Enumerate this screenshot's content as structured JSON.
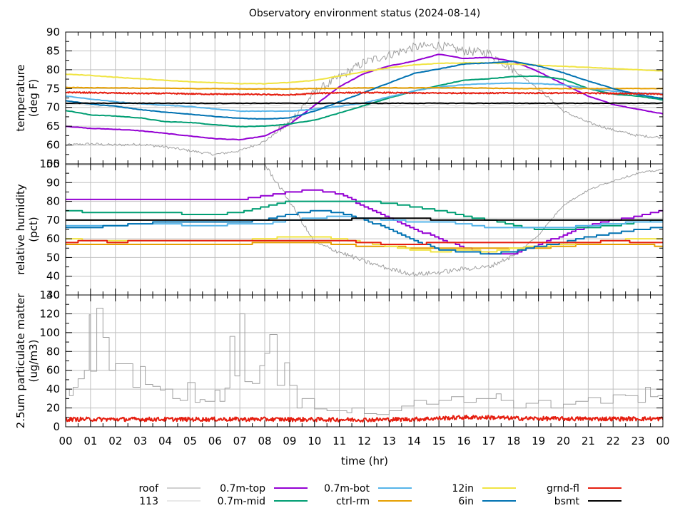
{
  "chart_data": {
    "type": "line",
    "title": "Observatory environment status (2024-08-14)",
    "xlabel": "time (hr)",
    "x_range_hours": [
      0,
      24
    ],
    "x_tick_labels": [
      "00",
      "01",
      "02",
      "03",
      "04",
      "05",
      "06",
      "07",
      "08",
      "09",
      "10",
      "11",
      "12",
      "13",
      "14",
      "15",
      "16",
      "17",
      "18",
      "19",
      "20",
      "21",
      "22",
      "23",
      "00"
    ],
    "grid": true,
    "legend_placement": "bottom",
    "legend": [
      {
        "name": "roof",
        "color": "#a0a0a0"
      },
      {
        "name": "113",
        "color": "#d3d3d3"
      },
      {
        "name": "0.7m-top",
        "color": "#9400d3"
      },
      {
        "name": "0.7m-mid",
        "color": "#009e73"
      },
      {
        "name": "0.7m-bot",
        "color": "#56b4e9"
      },
      {
        "name": "ctrl-rm",
        "color": "#e69f00"
      },
      {
        "name": "12in",
        "color": "#f0e442"
      },
      {
        "name": "6in",
        "color": "#0072b2"
      },
      {
        "name": "grnd-fl",
        "color": "#e51e10"
      },
      {
        "name": "bsmt",
        "color": "#000000"
      }
    ],
    "panels": [
      {
        "id": "temperature",
        "ylabel": [
          "temperature",
          "(deg F)"
        ],
        "ylim": [
          55,
          90
        ],
        "y_ticks": [
          60,
          65,
          70,
          75,
          80,
          85,
          90
        ],
        "y_tick_labels": [
          "60",
          "65",
          "70",
          "75",
          "80",
          "85",
          "90"
        ],
        "x": [
          0,
          1,
          2,
          3,
          4,
          5,
          6,
          7,
          8,
          9,
          10,
          11,
          12,
          13,
          14,
          15,
          16,
          17,
          18,
          19,
          20,
          21,
          22,
          23,
          24
        ],
        "series": [
          {
            "name": "roof",
            "style": "noisy",
            "values": [
              60,
              60.3,
              60,
              60.2,
              59.5,
              58.5,
              57.5,
              58.5,
              61,
              66,
              74,
              78,
              82,
              84,
              86,
              86.5,
              85,
              84.5,
              80,
              75,
              69,
              66,
              64,
              62.5,
              62
            ]
          },
          {
            "name": "113",
            "style": "wave",
            "values": [
              71,
              70.6,
              70.6,
              70.8,
              70.8,
              70.8,
              70.9,
              70.9,
              70.9,
              70.9,
              70.8,
              70.8,
              70.8,
              70.8,
              70.8,
              70.8,
              70.8,
              70.8,
              70.8,
              70.8,
              70.8,
              70.8,
              70.8,
              70.8,
              70.8
            ]
          },
          {
            "name": "0.7m-top",
            "values": [
              65,
              64.4,
              64.2,
              63.8,
              63.1,
              62.4,
              61.7,
              61.4,
              62.4,
              65.5,
              70.5,
              75.5,
              79,
              81,
              82.3,
              84.1,
              83,
              83.3,
              82.2,
              79.5,
              76.2,
              73,
              70.8,
              69.5,
              68.3
            ]
          },
          {
            "name": "0.7m-mid",
            "values": [
              69.2,
              68,
              67.7,
              67.2,
              66.2,
              66,
              65.4,
              64.9,
              65,
              65.6,
              66.6,
              68.5,
              70.5,
              72.5,
              74.3,
              75.8,
              77.2,
              77.6,
              78.2,
              78.3,
              77.5,
              75,
              73.5,
              73,
              72
            ]
          },
          {
            "name": "0.7m-bot",
            "values": [
              73,
              72.2,
              71.5,
              71,
              70.6,
              70.2,
              69.6,
              69,
              69,
              69,
              69.5,
              70.3,
              71.2,
              72.8,
              74.4,
              75.4,
              76,
              76.3,
              76.5,
              76.3,
              76,
              75,
              74.3,
              73.8,
              73.6
            ]
          },
          {
            "name": "ctrl-rm",
            "values": [
              75.3,
              75.2,
              75.2,
              75.1,
              75.1,
              75,
              75,
              74.9,
              74.9,
              74.9,
              75,
              75.1,
              75.2,
              75.2,
              75.2,
              75.2,
              75.2,
              75.1,
              75,
              75,
              75,
              75,
              75,
              75,
              75
            ]
          },
          {
            "name": "12in",
            "values": [
              78.8,
              78.5,
              78,
              77.6,
              77.2,
              76.8,
              76.6,
              76.3,
              76.3,
              76.6,
              77.2,
              78.3,
              79.5,
              80.5,
              81.3,
              81.7,
              81.8,
              81.8,
              81.5,
              81.2,
              80.9,
              80.6,
              80.3,
              80,
              79.7
            ]
          },
          {
            "name": "6in",
            "values": [
              71.8,
              70.9,
              70.3,
              69.4,
              68.7,
              68.2,
              67.6,
              67.1,
              66.9,
              67.2,
              69,
              71.5,
              74,
              76.5,
              79,
              80.2,
              81.5,
              81.8,
              82.2,
              81,
              79.2,
              77,
              75,
              73.4,
              72.3
            ]
          },
          {
            "name": "grnd-fl",
            "style": "noisy-small",
            "values": [
              74,
              73.9,
              73.8,
              73.7,
              73.7,
              73.6,
              73.5,
              73.5,
              73.4,
              73.3,
              73.7,
              73.9,
              73.9,
              73.9,
              73.8,
              73.8,
              73.8,
              73.8,
              73.8,
              73.8,
              73.8,
              73.8,
              73.7,
              73.7,
              73.5
            ]
          },
          {
            "name": "bsmt",
            "values": [
              71.1,
              71.1,
              71.1,
              71.1,
              71.1,
              71.1,
              71.1,
              71.1,
              71.1,
              71.1,
              71.1,
              71.1,
              71.1,
              71.1,
              71.1,
              71.1,
              71.1,
              71.1,
              71.1,
              71.1,
              71.1,
              71.1,
              71.1,
              71.1,
              71.1
            ]
          }
        ]
      },
      {
        "id": "humidity",
        "ylabel": [
          "relative humidity",
          "(pct)"
        ],
        "ylim": [
          30,
          100
        ],
        "y_ticks": [
          40,
          50,
          60,
          70,
          80,
          90,
          100
        ],
        "y_tick_labels": [
          "40",
          "50",
          "60",
          "70",
          "80",
          "90",
          "100"
        ],
        "extra_overlap_label": "55",
        "x": [
          0,
          1,
          2,
          3,
          4,
          5,
          6,
          7,
          8,
          9,
          10,
          11,
          12,
          13,
          14,
          15,
          16,
          17,
          18,
          19,
          20,
          21,
          22,
          23,
          24
        ],
        "series": [
          {
            "name": "roof",
            "style": "noisy",
            "values": [
              99.5,
              99.5,
              99.5,
              99.5,
              99.5,
              99.5,
              99.5,
              99.5,
              99.5,
              80,
              58,
              53,
              48,
              44,
              41,
              42,
              44,
              45,
              51,
              62,
              78,
              86,
              91,
              95,
              97
            ]
          },
          {
            "name": "113",
            "style": "steps",
            "values": [
              70,
              70,
              70,
              70,
              70,
              70,
              70,
              70,
              70,
              70,
              70,
              70,
              70,
              70,
              70,
              71,
              71,
              71,
              71,
              71,
              71,
              71,
              71,
              71,
              71
            ]
          },
          {
            "name": "0.7m-top",
            "style": "steps",
            "values": [
              81,
              81,
              81,
              81,
              81,
              81,
              81,
              81,
              83,
              85,
              86,
              84,
              77,
              71,
              65,
              60,
              55,
              52,
              52,
              57,
              62,
              67,
              70,
              72,
              75
            ]
          },
          {
            "name": "0.7m-mid",
            "style": "steps",
            "values": [
              75,
              74,
              74,
              74,
              74,
              73,
              73,
              74,
              77,
              80,
              80,
              80,
              80,
              79,
              77,
              75,
              72,
              70,
              67,
              65,
              65,
              66,
              67,
              69,
              70
            ]
          },
          {
            "name": "0.7m-bot",
            "style": "steps",
            "values": [
              67,
              67,
              67,
              68,
              68,
              67,
              67,
              68,
              68,
              70,
              71,
              72,
              71,
              70,
              69,
              69,
              68,
              66,
              66,
              66,
              66,
              67,
              68,
              69,
              69
            ]
          },
          {
            "name": "ctrl-rm",
            "style": "steps",
            "values": [
              57,
              57,
              57,
              57,
              57,
              57,
              57,
              57,
              58,
              58,
              58,
              57,
              56,
              56,
              55,
              55,
              55,
              55,
              55,
              55,
              56,
              57,
              57,
              57,
              56
            ]
          },
          {
            "name": "12in",
            "style": "steps",
            "values": [
              60,
              59,
              59,
              59,
              59,
              59,
              59,
              59,
              60,
              61,
              61,
              60,
              58,
              56,
              54,
              53,
              54,
              53,
              55,
              56,
              57,
              58,
              59,
              60,
              60
            ]
          },
          {
            "name": "6in",
            "style": "steps",
            "values": [
              66,
              66,
              67,
              68,
              69,
              69,
              69,
              69,
              70,
              73,
              75,
              74,
              70,
              65,
              59,
              54,
              53,
              52,
              53,
              56,
              58,
              61,
              63,
              65,
              66
            ]
          },
          {
            "name": "grnd-fl",
            "style": "steps",
            "values": [
              58,
              59,
              58,
              59,
              59,
              59,
              59,
              59,
              59,
              59,
              59,
              59,
              58,
              57,
              57,
              58,
              58,
              58,
              58,
              58,
              58,
              58,
              59,
              58,
              58
            ]
          },
          {
            "name": "bsmt",
            "style": "steps",
            "values": [
              70,
              70,
              70,
              70,
              70,
              70,
              70,
              70,
              70,
              70,
              70,
              70,
              71,
              71,
              71,
              70,
              70,
              70,
              70,
              70,
              70,
              70,
              70,
              70,
              70
            ]
          }
        ]
      },
      {
        "id": "pm25",
        "ylabel": [
          "2.5um particulate matter",
          "(ug/m3)"
        ],
        "ylim": [
          0,
          140
        ],
        "y_ticks": [
          0,
          20,
          40,
          60,
          80,
          100,
          120,
          140
        ],
        "y_tick_labels": [
          "0",
          "20",
          "40",
          "60",
          "80",
          "100",
          "120",
          "140"
        ],
        "extra_overlap_label": "30",
        "series": [
          {
            "name": "roof",
            "style": "steps",
            "x": [
              0,
              0.15,
              0.3,
              0.5,
              0.75,
              0.95,
              1.0,
              1.25,
              1.5,
              1.75,
              2.0,
              2.25,
              2.7,
              3.0,
              3.2,
              3.5,
              3.8,
              4.0,
              4.3,
              4.6,
              4.9,
              5.2,
              5.4,
              5.6,
              6.0,
              6.2,
              6.4,
              6.6,
              6.8,
              7.0,
              7.2,
              7.5,
              7.8,
              8.0,
              8.2,
              8.5,
              8.8,
              9.0,
              9.3,
              9.5,
              10.0,
              10.5,
              11.0,
              11.3,
              11.5,
              12.0,
              12.5,
              13.0,
              13.5,
              14.0,
              14.5,
              15.0,
              15.5,
              16.0,
              16.5,
              17.0,
              17.3,
              17.5,
              18.0,
              18.5,
              19.0,
              19.5,
              20.0,
              20.5,
              21.0,
              21.5,
              22.0,
              22.5,
              23.0,
              23.3,
              23.5,
              23.8
            ],
            "values": [
              40,
              33,
              42,
              51,
              60,
              119,
              59,
              126,
              95,
              60,
              67,
              67,
              42,
              64,
              45,
              43,
              39,
              40,
              30,
              28,
              47,
              26,
              29,
              27,
              39,
              27,
              41,
              96,
              54,
              120,
              48,
              46,
              65,
              78,
              98,
              44,
              68,
              44,
              20,
              30,
              19,
              17,
              17,
              15,
              20,
              14,
              13,
              17,
              22,
              28,
              24,
              28,
              32,
              26,
              30,
              30,
              35,
              28,
              20,
              25,
              28,
              20,
              24,
              27,
              31,
              25,
              34,
              33,
              26,
              42,
              32,
              33
            ]
          },
          {
            "name": "grnd-fl",
            "style": "noisy-pm",
            "x": [
              0,
              4,
              8,
              12,
              14,
              16,
              17,
              18,
              20,
              22,
              24
            ],
            "values": [
              8,
              8,
              8,
              7.5,
              8,
              10,
              10,
              9,
              8.5,
              8.5,
              8.5
            ]
          }
        ]
      }
    ]
  }
}
